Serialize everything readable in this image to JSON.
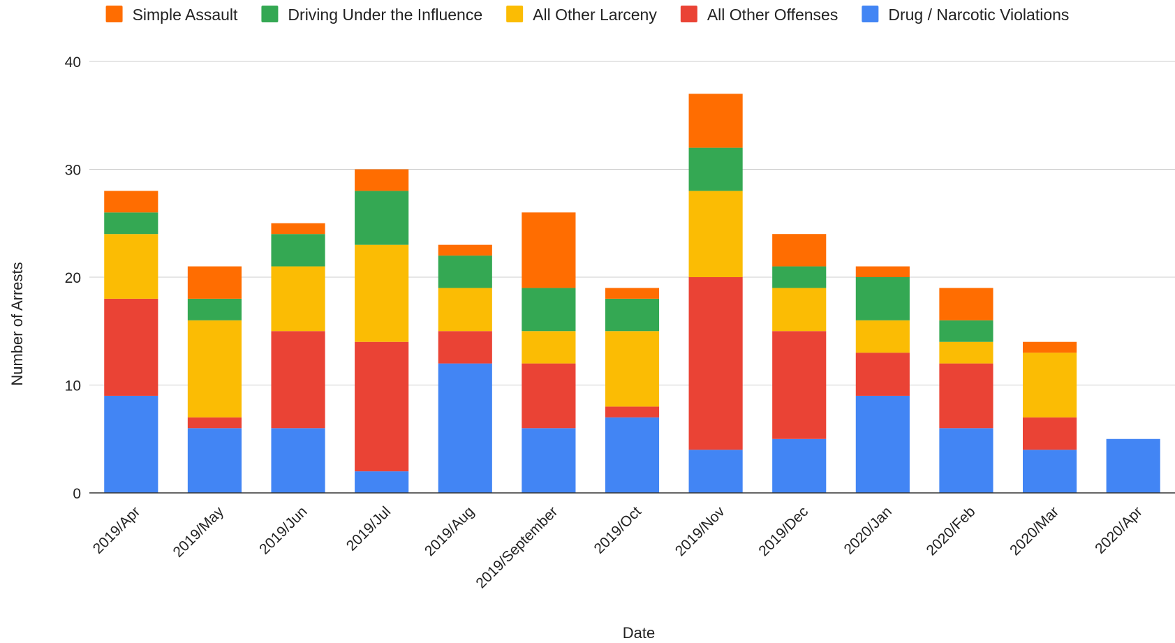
{
  "chart_data": {
    "type": "bar",
    "stacked": true,
    "xlabel": "Date",
    "ylabel": "Number of Arrests",
    "ylim": [
      0,
      40
    ],
    "yticks": [
      0,
      10,
      20,
      30,
      40
    ],
    "grid": true,
    "legend_position": "top",
    "categories": [
      "2019/Apr",
      "2019/May",
      "2019/Jun",
      "2019/Jul",
      "2019/Aug",
      "2019/September",
      "2019/Oct",
      "2019/Nov",
      "2019/Dec",
      "2020/Jan",
      "2020/Feb",
      "2020/Mar",
      "2020/Apr"
    ],
    "series": [
      {
        "name": "Drug / Narcotic Violations",
        "color": "#4285F4",
        "values": [
          9,
          6,
          6,
          2,
          12,
          6,
          7,
          4,
          5,
          9,
          6,
          4,
          5
        ]
      },
      {
        "name": "All Other Offenses",
        "color": "#EA4335",
        "values": [
          9,
          1,
          9,
          12,
          3,
          6,
          1,
          16,
          10,
          4,
          6,
          3,
          0
        ]
      },
      {
        "name": "All Other Larceny",
        "color": "#FBBC04",
        "values": [
          6,
          9,
          6,
          9,
          4,
          3,
          7,
          8,
          4,
          3,
          2,
          6,
          0
        ]
      },
      {
        "name": "Driving Under the Influence",
        "color": "#34A853",
        "values": [
          2,
          2,
          3,
          5,
          3,
          4,
          3,
          4,
          2,
          4,
          2,
          0,
          0
        ]
      },
      {
        "name": "Simple Assault",
        "color": "#FF6D01",
        "values": [
          2,
          3,
          1,
          2,
          1,
          7,
          1,
          5,
          3,
          1,
          3,
          1,
          0
        ]
      }
    ],
    "legend_order": [
      "Simple Assault",
      "Driving Under the Influence",
      "All Other Larceny",
      "All Other Offenses",
      "Drug / Narcotic Violations"
    ]
  }
}
